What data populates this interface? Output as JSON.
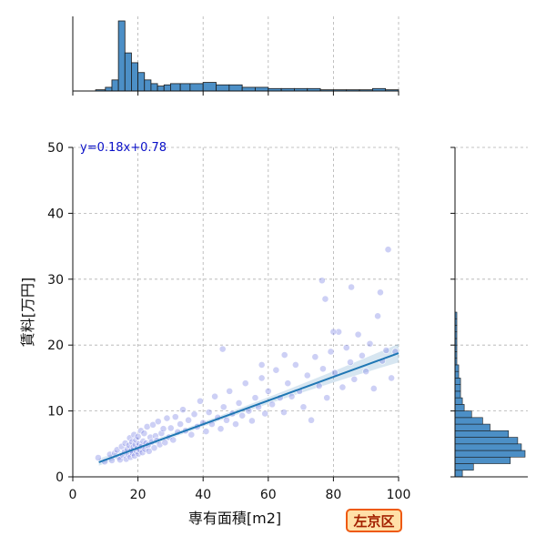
{
  "chart_data": {
    "type": "scatter",
    "xlabel": "専有面積[m2]",
    "ylabel": "賃料[万円]",
    "xlim": [
      0,
      100
    ],
    "ylim": [
      0,
      50
    ],
    "x_ticks": [
      "0",
      "20",
      "40",
      "60",
      "80",
      "100"
    ],
    "y_ticks": [
      "0",
      "10",
      "20",
      "30",
      "40",
      "50"
    ],
    "grid": true,
    "regression": {
      "label": "y=0.18x+0.78",
      "slope": 0.18,
      "intercept": 0.78,
      "x_range": [
        8,
        100
      ]
    },
    "points": [
      [
        7.8,
        2.9
      ],
      [
        9.8,
        2.3
      ],
      [
        11.4,
        3.4
      ],
      [
        12,
        2.5
      ],
      [
        12.9,
        3.6
      ],
      [
        13.6,
        4.1
      ],
      [
        14.1,
        3.0
      ],
      [
        14.5,
        2.6
      ],
      [
        15.0,
        4.6
      ],
      [
        15.4,
        3.3
      ],
      [
        15.9,
        3.8
      ],
      [
        16.1,
        5.1
      ],
      [
        16.4,
        2.7
      ],
      [
        16.8,
        4.2
      ],
      [
        17.0,
        3.4
      ],
      [
        17.3,
        4.8
      ],
      [
        17.5,
        5.9
      ],
      [
        17.7,
        3.0
      ],
      [
        18.0,
        4.0
      ],
      [
        18.2,
        5.3
      ],
      [
        18.4,
        3.6
      ],
      [
        18.6,
        4.5
      ],
      [
        18.8,
        6.4
      ],
      [
        19.0,
        3.2
      ],
      [
        19.2,
        4.9
      ],
      [
        19.4,
        5.6
      ],
      [
        19.6,
        3.9
      ],
      [
        19.8,
        4.3
      ],
      [
        20.0,
        6.1
      ],
      [
        20.2,
        3.5
      ],
      [
        20.4,
        5.0
      ],
      [
        20.6,
        4.1
      ],
      [
        20.9,
        7.0
      ],
      [
        21.1,
        4.6
      ],
      [
        21.4,
        3.7
      ],
      [
        21.6,
        5.4
      ],
      [
        21.9,
        6.6
      ],
      [
        22.2,
        4.2
      ],
      [
        22.5,
        5.1
      ],
      [
        22.8,
        7.6
      ],
      [
        23.1,
        4.8
      ],
      [
        23.4,
        3.9
      ],
      [
        23.8,
        6.0
      ],
      [
        24.2,
        5.3
      ],
      [
        24.6,
        7.9
      ],
      [
        25.0,
        4.4
      ],
      [
        25.4,
        6.2
      ],
      [
        25.8,
        5.5
      ],
      [
        26.2,
        8.4
      ],
      [
        26.7,
        4.9
      ],
      [
        27.2,
        6.6
      ],
      [
        27.8,
        7.3
      ],
      [
        28.3,
        5.2
      ],
      [
        28.9,
        8.9
      ],
      [
        29.5,
        6.0
      ],
      [
        30.1,
        7.4
      ],
      [
        30.8,
        5.6
      ],
      [
        31.5,
        9.1
      ],
      [
        32.2,
        6.8
      ],
      [
        33.0,
        8.0
      ],
      [
        33.8,
        10.2
      ],
      [
        34.6,
        7.0
      ],
      [
        35.5,
        8.6
      ],
      [
        36.4,
        6.4
      ],
      [
        37.3,
        9.5
      ],
      [
        38.2,
        7.6
      ],
      [
        39.1,
        11.5
      ],
      [
        40.0,
        8.2
      ],
      [
        40.9,
        6.9
      ],
      [
        41.8,
        9.8
      ],
      [
        42.7,
        8.0
      ],
      [
        43.6,
        12.2
      ],
      [
        44.5,
        9.0
      ],
      [
        45.4,
        7.3
      ],
      [
        46.3,
        10.6
      ],
      [
        47.2,
        8.6
      ],
      [
        48.1,
        13.0
      ],
      [
        49.0,
        9.6
      ],
      [
        50.0,
        8.0
      ],
      [
        51.0,
        11.2
      ],
      [
        52.0,
        9.3
      ],
      [
        53.0,
        14.2
      ],
      [
        54.0,
        10.0
      ],
      [
        55.0,
        8.5
      ],
      [
        56.0,
        12.0
      ],
      [
        57.0,
        10.6
      ],
      [
        58.0,
        15.0
      ],
      [
        59.0,
        9.6
      ],
      [
        60.0,
        13.0
      ],
      [
        61.2,
        11.0
      ],
      [
        62.4,
        16.2
      ],
      [
        63.6,
        12.0
      ],
      [
        64.8,
        9.8
      ],
      [
        66.0,
        14.2
      ],
      [
        67.2,
        12.2
      ],
      [
        68.4,
        17.0
      ],
      [
        69.6,
        13.0
      ],
      [
        70.8,
        10.6
      ],
      [
        72.0,
        15.4
      ],
      [
        73.2,
        8.6
      ],
      [
        74.4,
        18.2
      ],
      [
        75.6,
        13.8
      ],
      [
        76.8,
        16.4
      ],
      [
        77.5,
        27.0
      ],
      [
        78.0,
        12.0
      ],
      [
        79.2,
        19.0
      ],
      [
        80.4,
        15.8
      ],
      [
        81.6,
        22.0
      ],
      [
        82.8,
        13.6
      ],
      [
        84.0,
        19.6
      ],
      [
        85.2,
        17.4
      ],
      [
        85.5,
        28.8
      ],
      [
        86.4,
        14.8
      ],
      [
        87.6,
        21.6
      ],
      [
        88.8,
        18.4
      ],
      [
        90.0,
        16.0
      ],
      [
        91.2,
        20.2
      ],
      [
        92.4,
        13.4
      ],
      [
        93.6,
        24.4
      ],
      [
        94.4,
        28.0
      ],
      [
        95.0,
        17.6
      ],
      [
        96.2,
        19.2
      ],
      [
        96.8,
        34.5
      ],
      [
        97.8,
        15.0
      ],
      [
        99.0,
        19.0
      ],
      [
        76.5,
        29.8
      ],
      [
        80.0,
        22.0
      ],
      [
        46.0,
        19.4
      ],
      [
        58.0,
        17.0
      ],
      [
        65.0,
        18.5
      ]
    ],
    "top_hist": {
      "bin_edges": [
        7,
        10,
        12,
        14,
        16,
        18,
        20,
        22,
        24,
        26,
        28,
        30,
        33,
        36,
        40,
        44,
        48,
        52,
        56,
        60,
        64,
        68,
        72,
        76,
        80,
        84,
        88,
        92,
        96,
        100
      ],
      "counts": [
        1,
        3,
        9,
        57,
        31,
        23,
        15,
        9,
        6,
        4,
        5,
        6,
        6,
        6,
        7,
        5,
        5,
        3,
        3,
        2,
        2,
        2,
        2,
        1,
        1,
        1,
        1,
        2,
        1
      ]
    },
    "right_hist": {
      "bin_edges": [
        0,
        1,
        2,
        3,
        4,
        5,
        6,
        7,
        8,
        9,
        10,
        11,
        12,
        13,
        14,
        15,
        16,
        17,
        18,
        19,
        20,
        21,
        22,
        23,
        24,
        25,
        26,
        27,
        28,
        29,
        30,
        31,
        32,
        33,
        34,
        35
      ],
      "counts": [
        4,
        10,
        30,
        38,
        36,
        34,
        29,
        19,
        15,
        9,
        5,
        4,
        3,
        3,
        3,
        2,
        2,
        1,
        1,
        1,
        1,
        1,
        1,
        1,
        1,
        0,
        0,
        0,
        0,
        0,
        0,
        0,
        0,
        0,
        0
      ]
    }
  },
  "area_badge": "左京区"
}
